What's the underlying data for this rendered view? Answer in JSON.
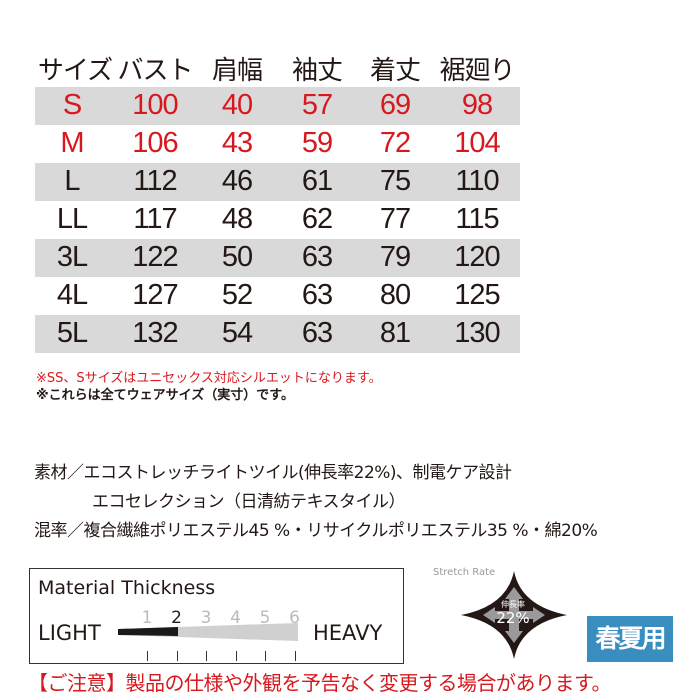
{
  "table": {
    "headers": [
      "サイズ",
      "バスト",
      "肩幅",
      "袖丈",
      "着丈",
      "裾廻り"
    ],
    "rows": [
      {
        "cells": [
          "S",
          "100",
          "40",
          "57",
          "69",
          "98"
        ],
        "shaded": true,
        "highlight": true
      },
      {
        "cells": [
          "M",
          "106",
          "43",
          "59",
          "72",
          "104"
        ],
        "shaded": false,
        "highlight": true
      },
      {
        "cells": [
          "L",
          "112",
          "46",
          "61",
          "75",
          "110"
        ],
        "shaded": true,
        "highlight": false
      },
      {
        "cells": [
          "LL",
          "117",
          "48",
          "62",
          "77",
          "115"
        ],
        "shaded": false,
        "highlight": false
      },
      {
        "cells": [
          "3L",
          "122",
          "50",
          "63",
          "79",
          "120"
        ],
        "shaded": true,
        "highlight": false
      },
      {
        "cells": [
          "4L",
          "127",
          "52",
          "63",
          "80",
          "125"
        ],
        "shaded": false,
        "highlight": false
      },
      {
        "cells": [
          "5L",
          "132",
          "54",
          "63",
          "81",
          "130"
        ],
        "shaded": true,
        "highlight": false
      }
    ]
  },
  "notes": [
    "※SS、Sサイズはユニセックス対応シルエットになります。",
    "※これらは全てウェアサイズ（実寸）です。"
  ],
  "spec": {
    "material": "素材／エコストレッチライトツイル(伸長率22%)、制電ケア設計",
    "material2": "エコセレクション（日清紡テキスタイル）",
    "blend": "混率／複合繊維ポリエステル45 %・リサイクルポリエステル35 %・綿20%"
  },
  "thickness": {
    "title": "Material Thickness",
    "light": "LIGHT",
    "heavy": "HEAVY",
    "levels": [
      "1",
      "2",
      "3",
      "4",
      "5",
      "6"
    ],
    "value": 2
  },
  "stretch": {
    "label": "Stretch Rate",
    "inner_label": "伸長率",
    "value": "22%"
  },
  "season_badge": {
    "text": "春夏用",
    "color": "#3a8dbf"
  },
  "caution": "【ご注意】製品の仕様や外観を予告なく変更する場合があります。",
  "colors": {
    "red": "#d7191f",
    "shade": "#d9d9d9"
  }
}
